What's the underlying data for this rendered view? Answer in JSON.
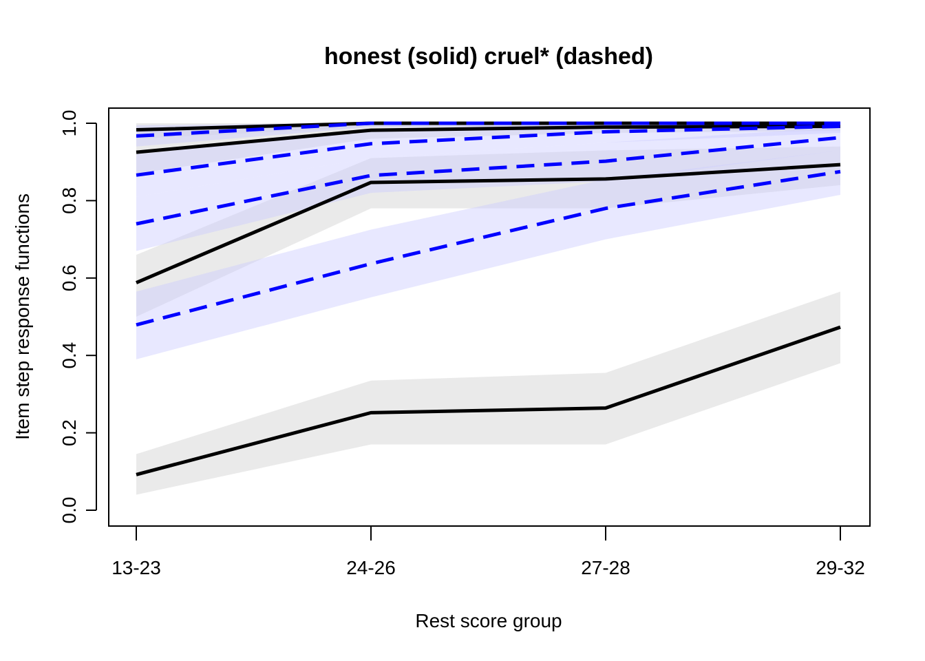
{
  "chart_data": {
    "type": "line",
    "title": "honest (solid) cruel* (dashed)",
    "xlabel": "Rest score group",
    "ylabel": "Item step response functions",
    "categories": [
      "13-23",
      "24-26",
      "27-28",
      "29-32"
    ],
    "ylim": [
      0,
      1
    ],
    "yticks": [
      "0.0",
      "0.2",
      "0.4",
      "0.6",
      "0.8",
      "1.0"
    ],
    "grid": false,
    "colors": {
      "honest_line": "#000000",
      "honest_band": "#d9d9d9",
      "cruel_line": "#0000ff",
      "cruel_band": "#ccccff"
    },
    "series": [
      {
        "group": "honest",
        "style": "solid",
        "values": [
          0.983,
          1.0,
          1.0,
          1.0
        ],
        "lower": [
          0.96,
          0.99,
          0.99,
          0.99
        ],
        "upper": [
          1.0,
          1.0,
          1.0,
          1.0
        ]
      },
      {
        "group": "honest",
        "style": "solid",
        "values": [
          0.925,
          0.982,
          0.99,
          0.992
        ],
        "lower": [
          0.87,
          0.96,
          0.975,
          0.98
        ],
        "upper": [
          0.98,
          1.0,
          1.0,
          1.0
        ]
      },
      {
        "group": "honest",
        "style": "solid",
        "values": [
          0.588,
          0.847,
          0.856,
          0.893
        ],
        "lower": [
          0.5,
          0.78,
          0.78,
          0.84
        ],
        "upper": [
          0.66,
          0.91,
          0.93,
          0.94
        ]
      },
      {
        "group": "honest",
        "style": "solid",
        "values": [
          0.092,
          0.252,
          0.264,
          0.473
        ],
        "lower": [
          0.04,
          0.17,
          0.17,
          0.38
        ],
        "upper": [
          0.145,
          0.335,
          0.355,
          0.565
        ]
      },
      {
        "group": "cruel",
        "style": "dashed",
        "values": [
          0.967,
          1.0,
          1.0,
          1.0
        ],
        "lower": [
          0.94,
          0.99,
          0.99,
          0.99
        ],
        "upper": [
          0.995,
          1.0,
          1.0,
          1.0
        ]
      },
      {
        "group": "cruel",
        "style": "dashed",
        "values": [
          0.866,
          0.947,
          0.978,
          0.992
        ],
        "lower": [
          0.81,
          0.91,
          0.95,
          0.975
        ],
        "upper": [
          0.92,
          0.98,
          0.995,
          1.0
        ]
      },
      {
        "group": "cruel",
        "style": "dashed",
        "values": [
          0.74,
          0.865,
          0.902,
          0.963
        ],
        "lower": [
          0.67,
          0.82,
          0.85,
          0.93
        ],
        "upper": [
          0.81,
          0.91,
          0.95,
          0.99
        ]
      },
      {
        "group": "cruel",
        "style": "dashed",
        "values": [
          0.479,
          0.637,
          0.78,
          0.875
        ],
        "lower": [
          0.39,
          0.55,
          0.7,
          0.815
        ],
        "upper": [
          0.565,
          0.725,
          0.855,
          0.93
        ]
      }
    ]
  }
}
